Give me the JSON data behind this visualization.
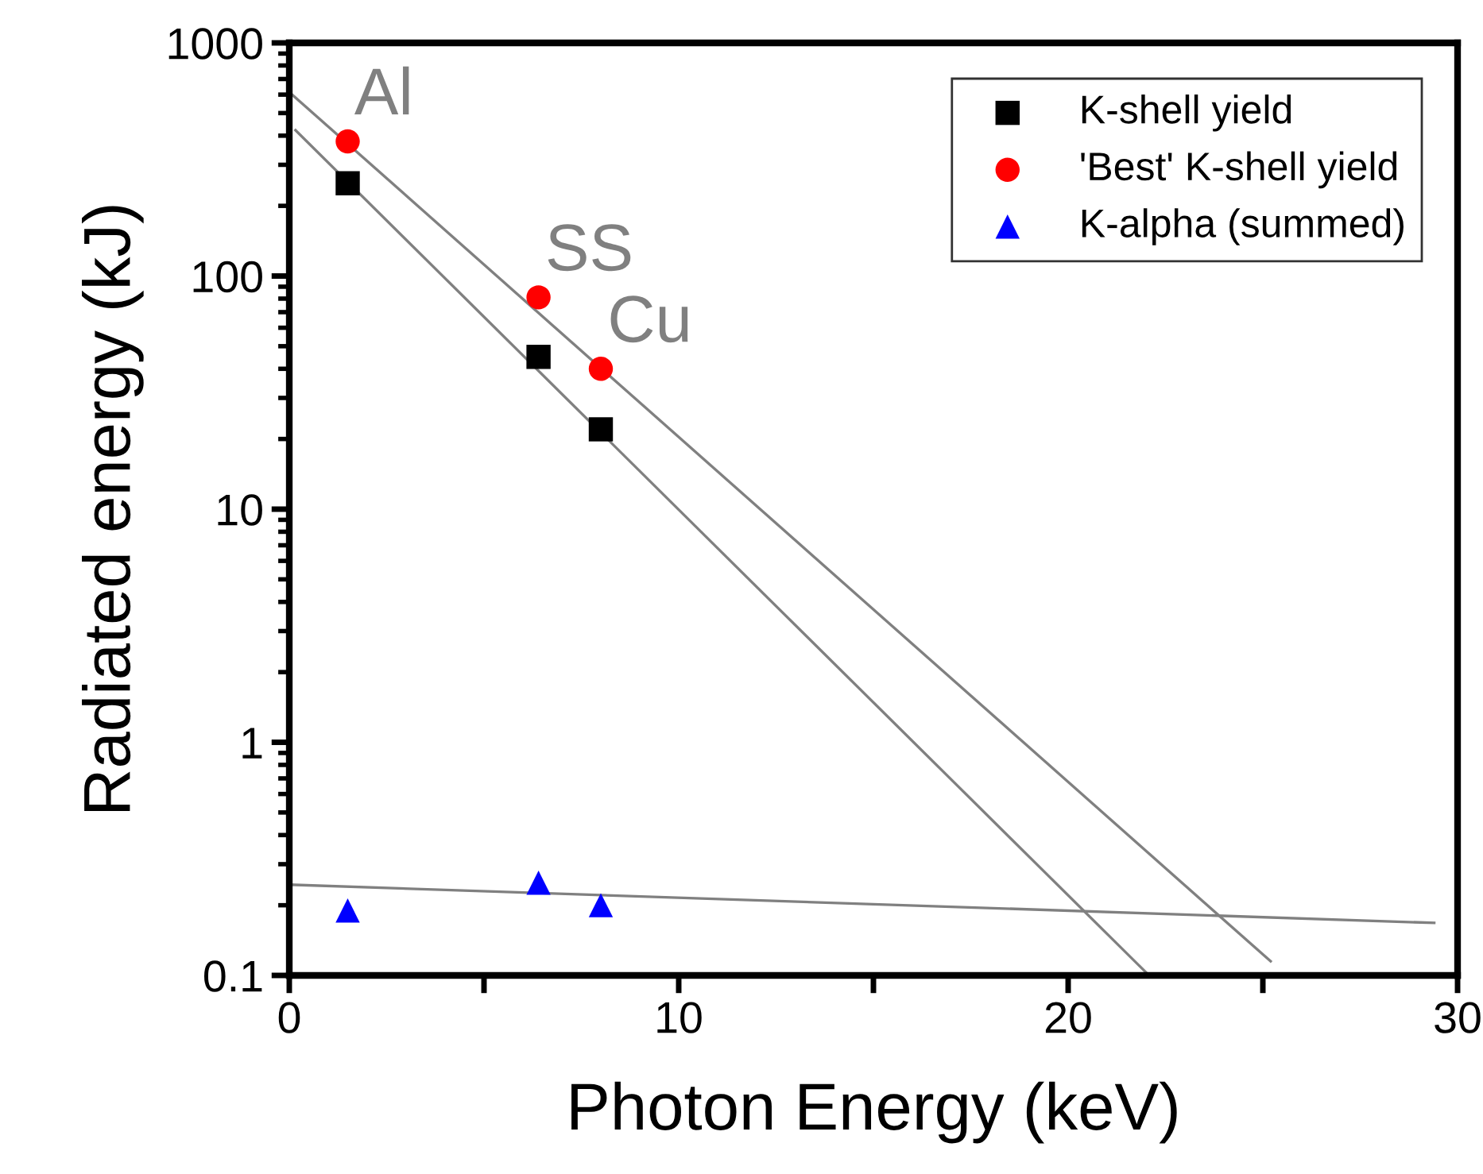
{
  "chart_data": {
    "type": "scatter",
    "xlabel": "Photon Energy (keV)",
    "ylabel": "Radiated energy (kJ)",
    "log": "y",
    "xlim": [
      0,
      30
    ],
    "ylim": [
      0.1,
      1000
    ],
    "xticks": [
      0,
      {
        "value": 5,
        "label": null
      },
      10,
      {
        "value": 15,
        "label": null
      },
      20,
      {
        "value": 25,
        "label": null
      },
      30
    ],
    "yticks": [
      0.1,
      1,
      10,
      100,
      1000
    ],
    "grid": false,
    "legend": "top right",
    "series": [
      {
        "name": "K-shell yield",
        "color": "#000000",
        "marker": "square",
        "x": [
          1.5,
          6.4,
          8.0
        ],
        "values": [
          250,
          45,
          22
        ]
      },
      {
        "name": "'Best' K-shell yield",
        "color": "#ff0000",
        "marker": "circle",
        "x": [
          1.5,
          6.4,
          8.0
        ],
        "values": [
          378,
          81,
          40
        ]
      },
      {
        "name": "K-alpha (summed)",
        "color": "#0000ff",
        "marker": "triangle",
        "x": [
          1.5,
          6.4,
          8.0
        ],
        "values": [
          0.19,
          0.25,
          0.2
        ]
      },
      {
        "type": "line",
        "color": "#808080",
        "x": [
          0.16,
          22.0
        ],
        "values": [
          422,
          0.103
        ]
      },
      {
        "type": "line",
        "color": "#808080",
        "x": [
          0,
          25.2
        ],
        "values": [
          615,
          0.115
        ]
      },
      {
        "type": "line",
        "color": "#808080",
        "x": [
          0,
          29.4
        ],
        "values": [
          0.245,
          0.168
        ]
      }
    ],
    "annotations": [
      {
        "text": "Al",
        "x": 1.5,
        "y": 378
      },
      {
        "text": "SS",
        "x": 6.4,
        "y": 81
      },
      {
        "text": "Cu",
        "x": 8.0,
        "y": 40
      }
    ]
  }
}
